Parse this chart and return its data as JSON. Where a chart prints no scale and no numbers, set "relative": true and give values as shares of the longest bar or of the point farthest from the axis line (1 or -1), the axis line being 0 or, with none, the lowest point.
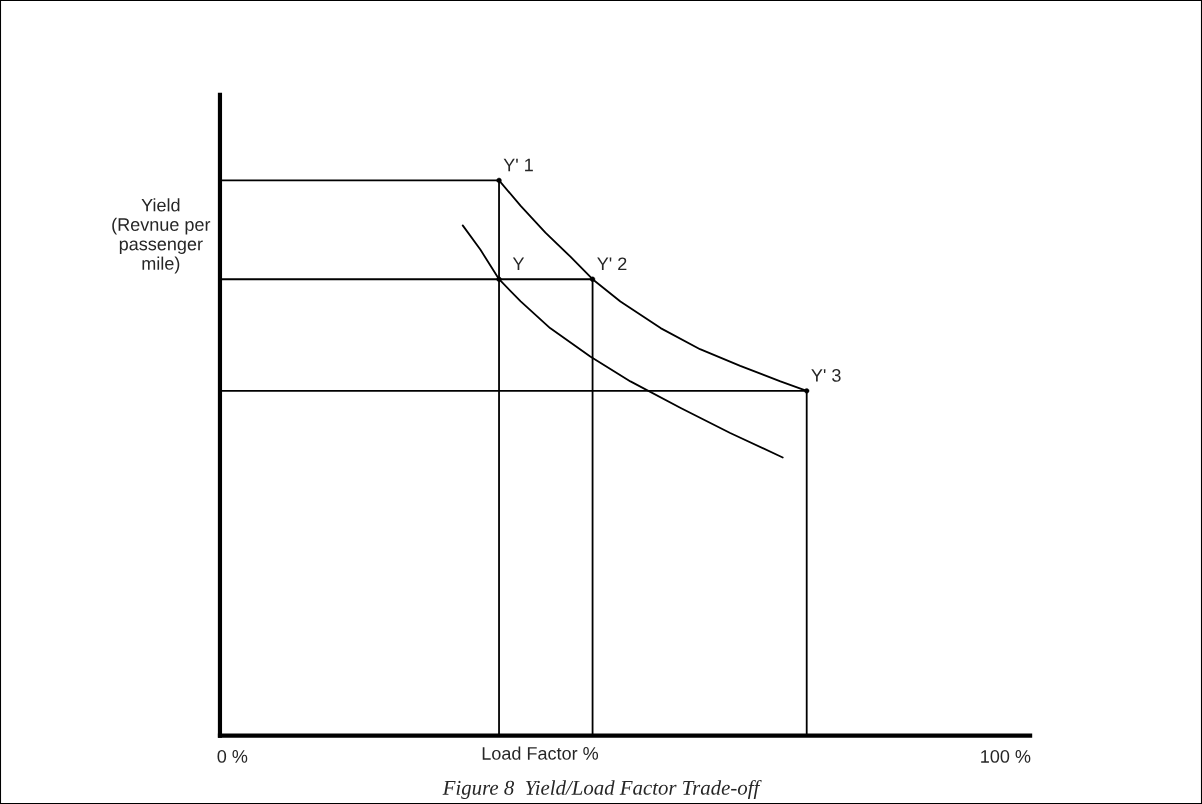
{
  "chart_data": {
    "type": "line",
    "title": "Figure 8  Yield/Load Factor Trade-off",
    "xlabel": "Load Factor %",
    "ylabel": "Yield\n(Revnue per\npassenger\nmile)",
    "relative": true,
    "xlim": [
      -1.6,
      103.2
    ],
    "xticks": [
      {
        "value": 0,
        "label": "0 %"
      },
      {
        "value": 100,
        "label": "100 %"
      }
    ],
    "series": [
      {
        "color": "#000000",
        "x": [
          34.5,
          37.3,
          40.5,
          43.7,
          46.6,
          50.2,
          55.4,
          60.5,
          65.7,
          70.9,
          74.3
        ],
        "values": [
          1.0,
          0.954,
          0.906,
          0.863,
          0.822,
          0.782,
          0.734,
          0.696,
          0.666,
          0.638,
          0.621
        ]
      },
      {
        "color": "#000000",
        "x": [
          29.8,
          32.1,
          34.5,
          37.3,
          41.1,
          46.3,
          51.5,
          58.0,
          64.4,
          71.2
        ],
        "values": [
          0.919,
          0.875,
          0.822,
          0.782,
          0.734,
          0.683,
          0.638,
          0.59,
          0.545,
          0.501
        ]
      },
      {
        "color": "#000000",
        "x": [
          -1.6,
          34.5,
          34.5
        ],
        "values": [
          1.0,
          1.0,
          0
        ]
      },
      {
        "color": "#000000",
        "x": [
          -1.6,
          46.6,
          46.6
        ],
        "values": [
          0.822,
          0.822,
          0
        ]
      },
      {
        "color": "#000000",
        "x": [
          -1.6,
          74.3,
          74.3
        ],
        "values": [
          0.621,
          0.621,
          0
        ]
      },
      {
        "type": "scatter",
        "color": "#000000",
        "marker": "circle",
        "x": [
          34.5,
          34.5,
          46.6,
          74.3
        ],
        "values": [
          1.0,
          0.822,
          0.822,
          0.621
        ]
      }
    ],
    "annotations": [
      {
        "text": "Y' 1",
        "x": 34.5,
        "y": 1.0
      },
      {
        "text": "Y",
        "x": 34.5,
        "y": 0.822
      },
      {
        "text": "Y' 2",
        "x": 46.6,
        "y": 0.822
      },
      {
        "text": "Y' 3",
        "x": 74.3,
        "y": 0.621
      }
    ]
  }
}
